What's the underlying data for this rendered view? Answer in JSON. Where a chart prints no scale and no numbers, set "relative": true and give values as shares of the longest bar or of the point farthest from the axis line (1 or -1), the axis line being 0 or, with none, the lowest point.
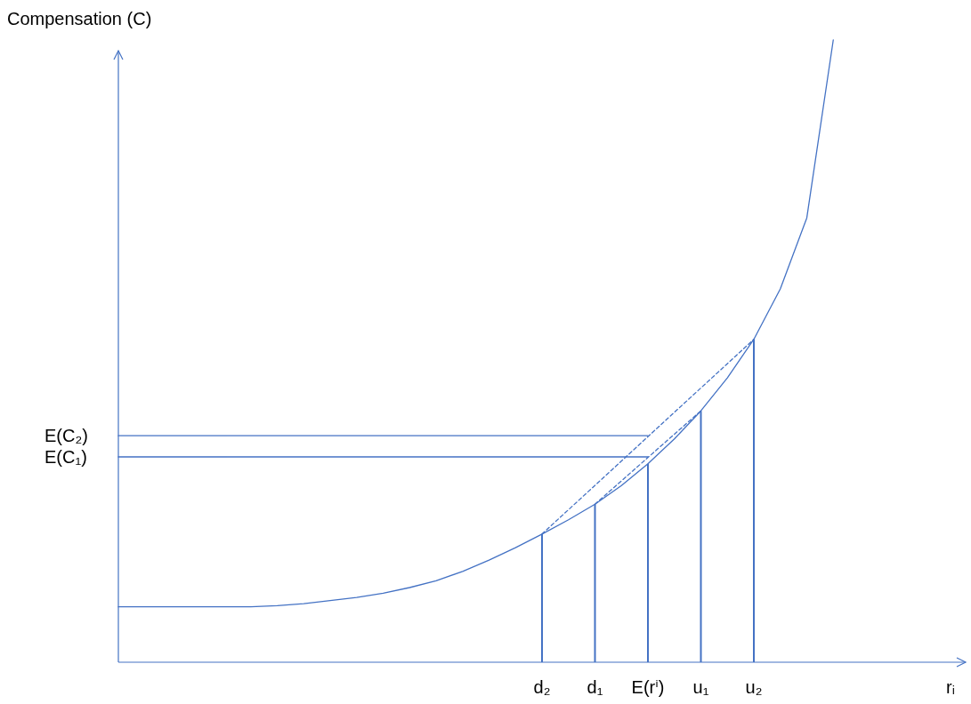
{
  "chart_data": {
    "type": "line",
    "relative": true,
    "ylabel": "Compensation (C)",
    "xlabel": "rᵢ",
    "categories": [
      null,
      null,
      null,
      null,
      null,
      null,
      null,
      null,
      null,
      null,
      null,
      null,
      null,
      null,
      null,
      null,
      "d₂",
      null,
      "d₁",
      null,
      "E(rⁱ)",
      null,
      "u₁",
      null,
      "u₂",
      null,
      null,
      null,
      null,
      null,
      null,
      null,
      null
    ],
    "series": [
      {
        "color": "#4472c4",
        "line_style": "solid",
        "values": [
          0.089,
          0.089,
          0.089,
          0.089,
          0.089,
          0.089,
          0.091,
          0.094,
          0.099,
          0.104,
          0.111,
          0.12,
          0.131,
          0.146,
          0.164,
          0.184,
          0.206,
          0.229,
          0.254,
          0.284,
          0.319,
          0.359,
          0.404,
          0.457,
          0.519,
          0.6,
          0.714,
          1,
          null,
          null,
          null,
          null,
          null
        ]
      },
      {
        "type": "line",
        "name": "E(C₂)",
        "color": "#4472c4",
        "line_style": "solid",
        "values": [
          0.364,
          null,
          null,
          null,
          null,
          null,
          null,
          null,
          null,
          null,
          null,
          null,
          null,
          null,
          null,
          null,
          null,
          null,
          null,
          null,
          0.364,
          null,
          null,
          null,
          null,
          null,
          null,
          null,
          null,
          null,
          null,
          null,
          null
        ]
      },
      {
        "type": "line",
        "name": "E(C₁)",
        "color": "#4472c4",
        "line_style": "solid",
        "values": [
          0.33,
          null,
          null,
          null,
          null,
          null,
          null,
          null,
          null,
          null,
          null,
          null,
          null,
          null,
          null,
          null,
          null,
          null,
          null,
          null,
          0.33,
          null,
          null,
          null,
          null,
          null,
          null,
          null,
          null,
          null,
          null,
          null,
          null
        ]
      },
      {
        "type": "line",
        "color": "#4472c4",
        "line_style": "dashed",
        "values": [
          null,
          null,
          null,
          null,
          null,
          null,
          null,
          null,
          null,
          null,
          null,
          null,
          null,
          null,
          null,
          null,
          0.206,
          null,
          null,
          null,
          null,
          null,
          null,
          null,
          0.519,
          null,
          null,
          null,
          null,
          null,
          null,
          null,
          null
        ]
      },
      {
        "type": "line",
        "color": "#4472c4",
        "line_style": "dashed",
        "values": [
          null,
          null,
          null,
          null,
          null,
          null,
          null,
          null,
          null,
          null,
          null,
          null,
          null,
          null,
          null,
          null,
          null,
          null,
          0.254,
          null,
          null,
          null,
          0.404,
          null,
          null,
          null,
          null,
          null,
          null,
          null,
          null,
          null,
          null
        ]
      },
      {
        "type": "bar",
        "color": "#4472c4",
        "values": [
          null,
          null,
          null,
          null,
          null,
          null,
          null,
          null,
          null,
          null,
          null,
          null,
          null,
          null,
          null,
          null,
          0.206,
          null,
          0.254,
          null,
          0.319,
          null,
          0.404,
          null,
          0.519,
          null,
          null,
          null,
          null,
          null,
          null,
          null,
          null
        ]
      }
    ]
  }
}
